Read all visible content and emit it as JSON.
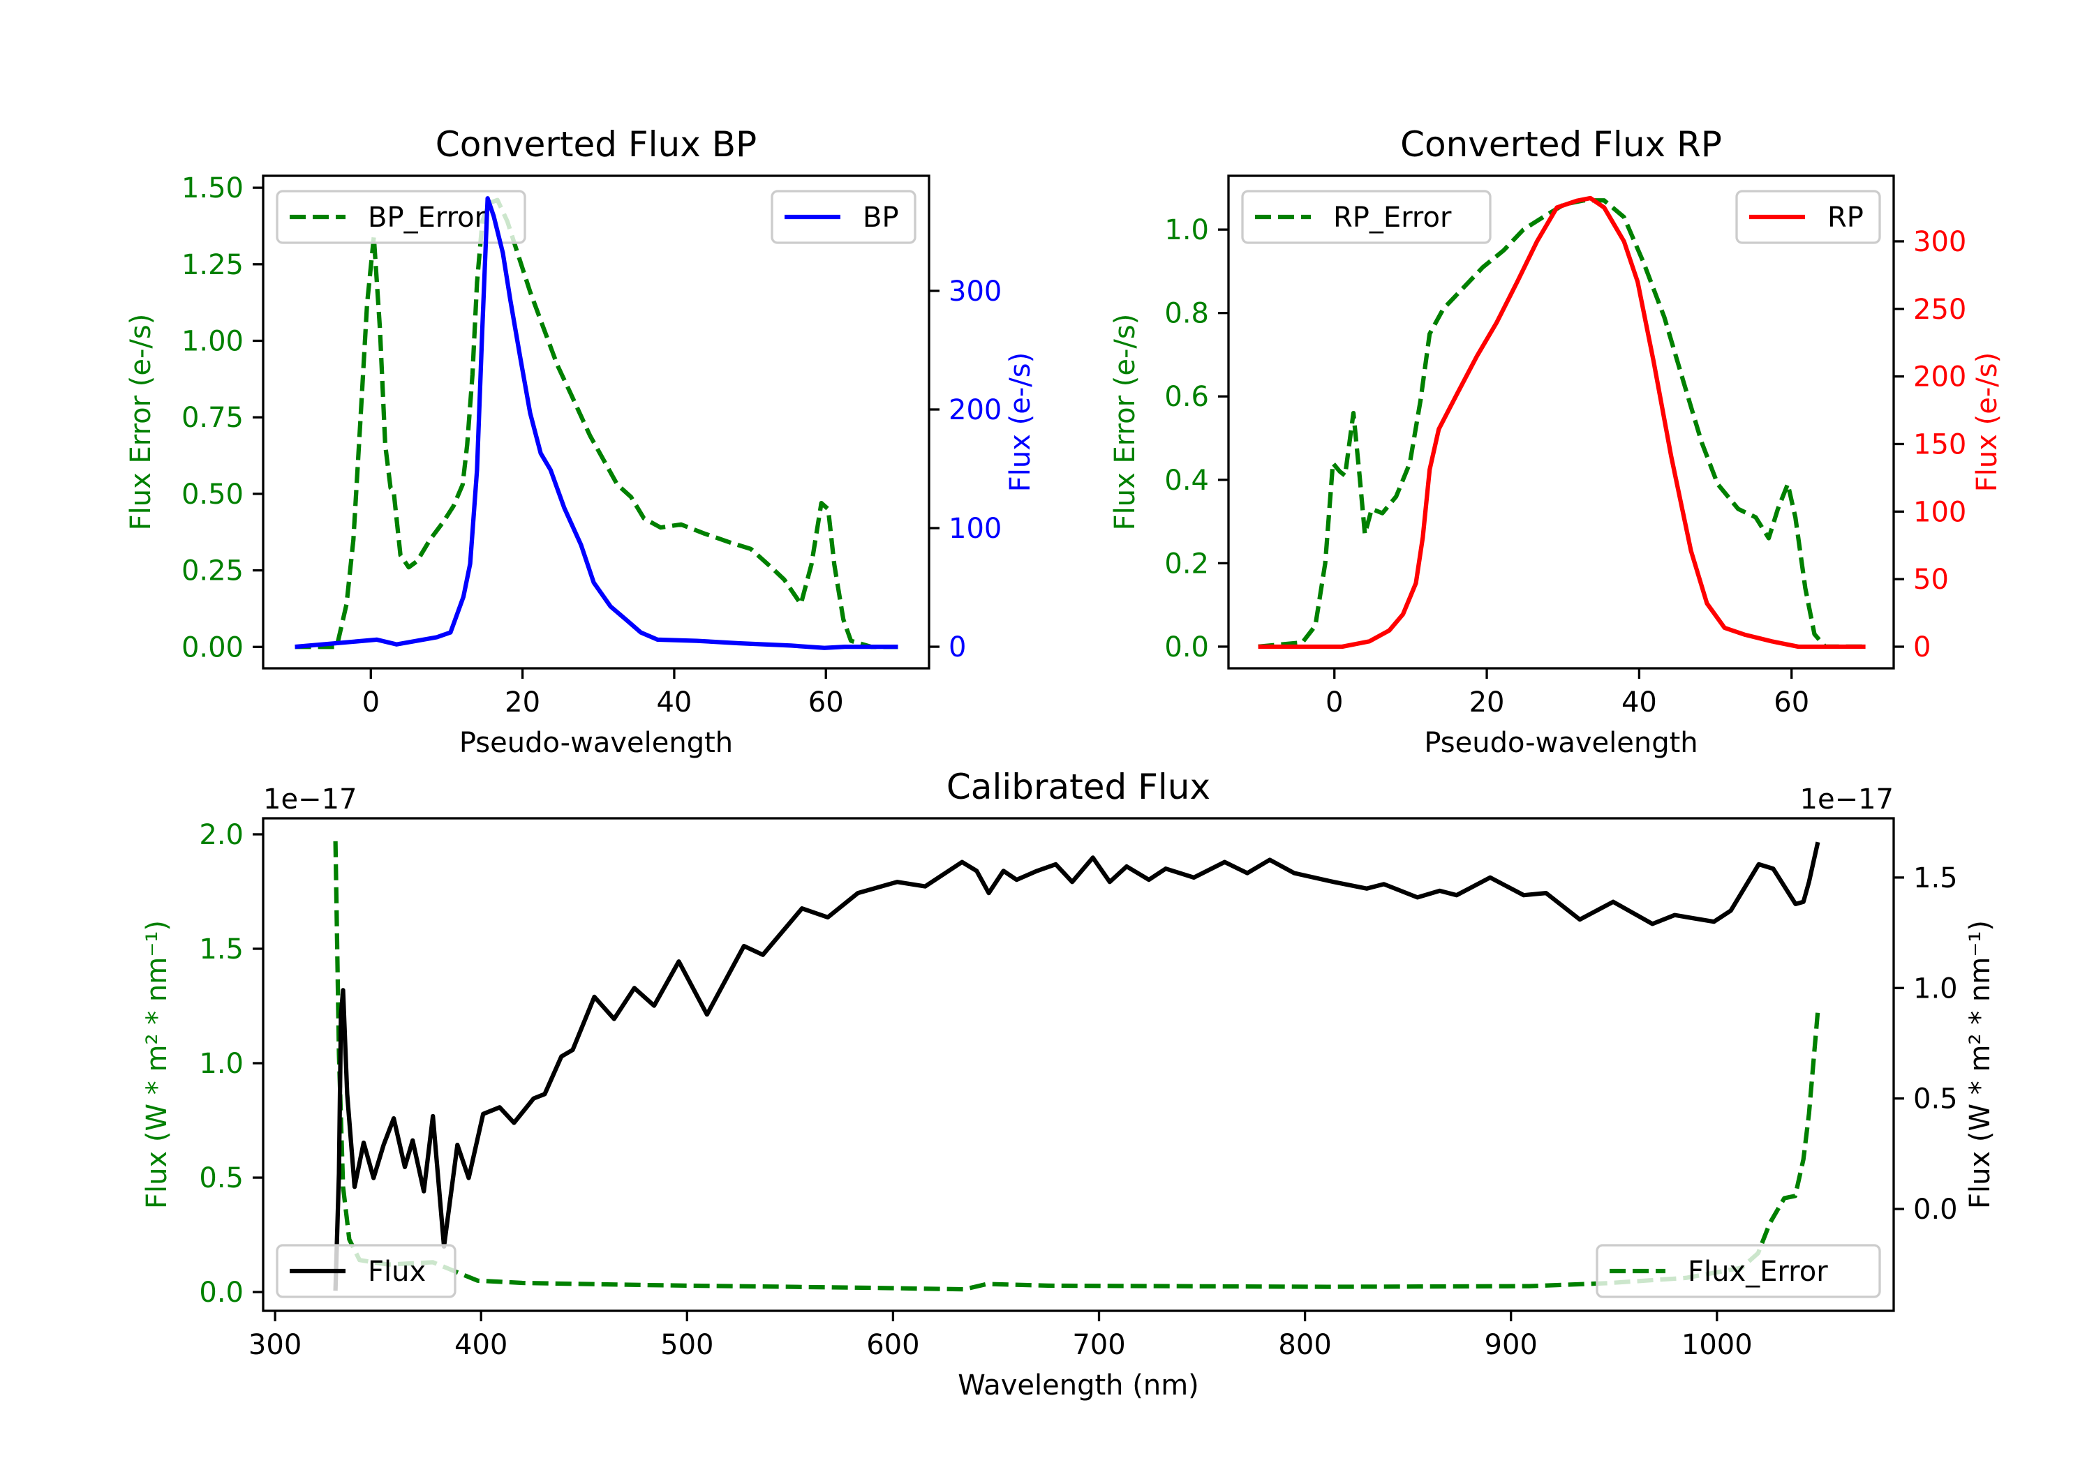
{
  "chart_data": [
    {
      "type": "line",
      "title": "Converted Flux BP",
      "xlabel": "Pseudo-wavelength",
      "ylabel_left": "Flux Error (e-/s)",
      "ylabel_right": "Flux (e-/s)",
      "xlim": [
        -14.2,
        73.6
      ],
      "ylim_left": [
        -0.07,
        1.539
      ],
      "ylim_right": [
        -18.2,
        397
      ],
      "xticks": [
        0,
        20,
        40,
        60
      ],
      "yticks_left": [
        "0.00",
        "0.25",
        "0.50",
        "0.75",
        "1.00",
        "1.25",
        "1.50"
      ],
      "yticks_right": [
        "0",
        "100",
        "200",
        "300"
      ],
      "left_color": "#008000",
      "right_color": "#0000ff",
      "legend_left": {
        "label": "BP_Error",
        "placement": "upper left"
      },
      "legend_right": {
        "label": "BP",
        "placement": "upper right"
      },
      "series_left": {
        "name": "BP_Error",
        "style": "dashed",
        "color": "#008000",
        "points": [
          [
            -10,
            0
          ],
          [
            -4.5,
            0
          ],
          [
            -3.2,
            0.14
          ],
          [
            -2.3,
            0.35
          ],
          [
            -1.4,
            0.73
          ],
          [
            -0.5,
            1.12
          ],
          [
            0.4,
            1.34
          ],
          [
            1.2,
            1.04
          ],
          [
            1.9,
            0.66
          ],
          [
            2.6,
            0.52
          ],
          [
            3,
            0.51
          ],
          [
            3.9,
            0.3
          ],
          [
            5,
            0.26
          ],
          [
            6.1,
            0.28
          ],
          [
            7.8,
            0.35
          ],
          [
            9.6,
            0.41
          ],
          [
            10.9,
            0.46
          ],
          [
            12.1,
            0.53
          ],
          [
            12.7,
            0.66
          ],
          [
            13.4,
            0.89
          ],
          [
            14,
            1.19
          ],
          [
            14.7,
            1.39
          ],
          [
            15.6,
            1.45
          ],
          [
            16.7,
            1.46
          ],
          [
            18,
            1.39
          ],
          [
            19.3,
            1.29
          ],
          [
            21,
            1.16
          ],
          [
            22.8,
            1.04
          ],
          [
            24.6,
            0.92
          ],
          [
            26.3,
            0.83
          ],
          [
            28.9,
            0.69
          ],
          [
            30.7,
            0.61
          ],
          [
            32.5,
            0.53
          ],
          [
            34.3,
            0.49
          ],
          [
            36,
            0.42
          ],
          [
            38.2,
            0.39
          ],
          [
            40.9,
            0.4
          ],
          [
            44,
            0.37
          ],
          [
            47.5,
            0.34
          ],
          [
            50.1,
            0.32
          ],
          [
            52.8,
            0.26
          ],
          [
            54.5,
            0.22
          ],
          [
            56.7,
            0.14
          ],
          [
            58.1,
            0.27
          ],
          [
            59.4,
            0.47
          ],
          [
            60.3,
            0.45
          ],
          [
            61.1,
            0.27
          ],
          [
            62.3,
            0.09
          ],
          [
            63.3,
            0.02
          ],
          [
            66,
            0
          ],
          [
            69.5,
            0
          ]
        ]
      },
      "series_right": {
        "name": "BP",
        "style": "solid",
        "color": "#0000ff",
        "points": [
          [
            -10,
            0
          ],
          [
            0.8,
            6
          ],
          [
            3.4,
            2
          ],
          [
            8.7,
            8
          ],
          [
            10.5,
            12
          ],
          [
            12.2,
            42
          ],
          [
            13.1,
            70
          ],
          [
            14,
            149
          ],
          [
            14.7,
            268
          ],
          [
            15.4,
            378
          ],
          [
            16.2,
            363
          ],
          [
            17.4,
            332
          ],
          [
            18.4,
            292
          ],
          [
            19.7,
            244
          ],
          [
            21,
            197
          ],
          [
            22.4,
            163
          ],
          [
            23.7,
            149
          ],
          [
            25.5,
            117
          ],
          [
            27.7,
            86
          ],
          [
            29.4,
            54
          ],
          [
            31.6,
            34
          ],
          [
            33.8,
            22
          ],
          [
            35.6,
            12
          ],
          [
            37.8,
            6
          ],
          [
            43,
            5
          ],
          [
            48.4,
            3
          ],
          [
            55.4,
            1
          ],
          [
            59.8,
            -1
          ],
          [
            62.5,
            0
          ],
          [
            69.5,
            0
          ]
        ]
      }
    },
    {
      "type": "line",
      "title": "Converted Flux RP",
      "xlabel": "Pseudo-wavelength",
      "ylabel_left": "Flux Error (e-/s)",
      "ylabel_right": "Flux (e-/s)",
      "xlim": [
        -13.9,
        73.4
      ],
      "ylim_left": [
        -0.052,
        1.129
      ],
      "ylim_right": [
        -16,
        348.5
      ],
      "xticks": [
        0,
        20,
        40,
        60
      ],
      "yticks_left": [
        "0.0",
        "0.2",
        "0.4",
        "0.6",
        "0.8",
        "1.0"
      ],
      "yticks_right": [
        "0",
        "50",
        "100",
        "150",
        "200",
        "250",
        "300"
      ],
      "left_color": "#008000",
      "right_color": "#ff0000",
      "legend_left": {
        "label": "RP_Error",
        "placement": "upper left"
      },
      "legend_right": {
        "label": "RP",
        "placement": "upper right"
      },
      "series_left": {
        "name": "RP_Error",
        "style": "dashed",
        "color": "#008000",
        "points": [
          [
            -10,
            0
          ],
          [
            -4.2,
            0.01
          ],
          [
            -2.5,
            0.05
          ],
          [
            -1.2,
            0.2
          ],
          [
            -0.2,
            0.44
          ],
          [
            0.7,
            0.42
          ],
          [
            1.4,
            0.41
          ],
          [
            2.5,
            0.56
          ],
          [
            3.3,
            0.41
          ],
          [
            4,
            0.27
          ],
          [
            4.9,
            0.33
          ],
          [
            6.3,
            0.32
          ],
          [
            8.1,
            0.36
          ],
          [
            9.9,
            0.44
          ],
          [
            11.3,
            0.59
          ],
          [
            12.5,
            0.75
          ],
          [
            14.3,
            0.81
          ],
          [
            16.9,
            0.86
          ],
          [
            19.5,
            0.91
          ],
          [
            22.2,
            0.95
          ],
          [
            24.8,
            1.0
          ],
          [
            27.4,
            1.03
          ],
          [
            30.1,
            1.06
          ],
          [
            32.7,
            1.07
          ],
          [
            35.4,
            1.07
          ],
          [
            38,
            1.03
          ],
          [
            40.6,
            0.92
          ],
          [
            43.3,
            0.79
          ],
          [
            45.9,
            0.63
          ],
          [
            48.2,
            0.49
          ],
          [
            50.3,
            0.39
          ],
          [
            53,
            0.33
          ],
          [
            55.3,
            0.31
          ],
          [
            57,
            0.26
          ],
          [
            58.2,
            0.33
          ],
          [
            59.5,
            0.39
          ],
          [
            60.5,
            0.31
          ],
          [
            61.8,
            0.14
          ],
          [
            63,
            0.03
          ],
          [
            64.4,
            0
          ],
          [
            69.7,
            0
          ]
        ]
      },
      "series_right": {
        "name": "RP",
        "style": "solid",
        "color": "#ff0000",
        "points": [
          [
            -10,
            0
          ],
          [
            1,
            0
          ],
          [
            4.6,
            4
          ],
          [
            7.2,
            12
          ],
          [
            9,
            24
          ],
          [
            10.7,
            47
          ],
          [
            11.6,
            81
          ],
          [
            12.5,
            131
          ],
          [
            13.7,
            161
          ],
          [
            16,
            186
          ],
          [
            18.7,
            215
          ],
          [
            21.3,
            240
          ],
          [
            24,
            270
          ],
          [
            26.6,
            300
          ],
          [
            29.2,
            325
          ],
          [
            31.8,
            330
          ],
          [
            33.6,
            332
          ],
          [
            35.4,
            325
          ],
          [
            38,
            300
          ],
          [
            39.8,
            270
          ],
          [
            41.9,
            211
          ],
          [
            44.2,
            141
          ],
          [
            46.8,
            71
          ],
          [
            48.9,
            32
          ],
          [
            51.2,
            14
          ],
          [
            53.8,
            9
          ],
          [
            57.4,
            4
          ],
          [
            60.9,
            0
          ],
          [
            69.7,
            0
          ]
        ]
      }
    },
    {
      "type": "line",
      "title": "Calibrated Flux",
      "xlabel": "Wavelength (nm)",
      "ylabel_left": "Flux (W * m² * nm⁻¹)",
      "ylabel_right": "Flux (W * m² * nm⁻¹)",
      "offset_left": "1e−17",
      "offset_right": "1e−17",
      "xlim": [
        294.2,
        1085.8
      ],
      "ylim_left": [
        -0.082,
        2.07
      ],
      "ylim_right": [
        -0.461,
        1.768
      ],
      "xticks": [
        300,
        400,
        500,
        600,
        700,
        800,
        900,
        1000
      ],
      "yticks_left": [
        "0.0",
        "0.5",
        "1.0",
        "1.5",
        "2.0"
      ],
      "yticks_right": [
        "0.0",
        "0.5",
        "1.0",
        "1.5"
      ],
      "left_color": "#008000",
      "right_color": "#000000",
      "legend_left": {
        "label": "Flux",
        "placement": "lower left"
      },
      "legend_right": {
        "label": "Flux_Error",
        "placement": "lower right"
      },
      "legend_left_series": "right",
      "series_left": {
        "name": "Flux_Error",
        "style": "dashed",
        "color": "#008000",
        "points": [
          [
            329.3,
            1.97
          ],
          [
            331,
            1.04
          ],
          [
            333,
            0.46
          ],
          [
            336,
            0.23
          ],
          [
            341,
            0.14
          ],
          [
            354.9,
            0.12
          ],
          [
            376.6,
            0.13
          ],
          [
            384.7,
            0.1
          ],
          [
            398.3,
            0.05
          ],
          [
            420,
            0.04
          ],
          [
            485,
            0.03
          ],
          [
            593.9,
            0.018
          ],
          [
            634.6,
            0.012
          ],
          [
            645.5,
            0.035
          ],
          [
            675.3,
            0.028
          ],
          [
            811,
            0.023
          ],
          [
            908.9,
            0.026
          ],
          [
            947,
            0.039
          ],
          [
            985,
            0.062
          ],
          [
            1012,
            0.106
          ],
          [
            1020,
            0.17
          ],
          [
            1025.6,
            0.3
          ],
          [
            1032.7,
            0.41
          ],
          [
            1038,
            0.42
          ],
          [
            1042,
            0.58
          ],
          [
            1044.7,
            0.78
          ],
          [
            1049,
            1.23
          ]
        ]
      },
      "series_right": {
        "name": "Flux",
        "style": "solid",
        "color": "#000000",
        "points": [
          [
            329.3,
            -0.37
          ],
          [
            331,
            0.16
          ],
          [
            332,
            0.88
          ],
          [
            333,
            0.99
          ],
          [
            335,
            0.52
          ],
          [
            338.6,
            0.1
          ],
          [
            343,
            0.3
          ],
          [
            347.8,
            0.14
          ],
          [
            352.7,
            0.29
          ],
          [
            357.6,
            0.41
          ],
          [
            363,
            0.19
          ],
          [
            366.8,
            0.31
          ],
          [
            372.2,
            0.08
          ],
          [
            376.6,
            0.42
          ],
          [
            382,
            -0.17
          ],
          [
            388.5,
            0.29
          ],
          [
            394,
            0.14
          ],
          [
            401,
            0.43
          ],
          [
            409,
            0.46
          ],
          [
            416,
            0.39
          ],
          [
            425.5,
            0.5
          ],
          [
            430.9,
            0.52
          ],
          [
            439,
            0.69
          ],
          [
            444.5,
            0.72
          ],
          [
            455,
            0.96
          ],
          [
            464.6,
            0.86
          ],
          [
            474.4,
            1.0
          ],
          [
            484,
            0.92
          ],
          [
            496,
            1.12
          ],
          [
            509.7,
            0.88
          ],
          [
            527.6,
            1.19
          ],
          [
            536.8,
            1.15
          ],
          [
            555.8,
            1.36
          ],
          [
            568.3,
            1.32
          ],
          [
            583,
            1.43
          ],
          [
            602,
            1.48
          ],
          [
            615.6,
            1.46
          ],
          [
            633.5,
            1.57
          ],
          [
            640.6,
            1.53
          ],
          [
            646.5,
            1.43
          ],
          [
            653.6,
            1.53
          ],
          [
            660,
            1.49
          ],
          [
            669.9,
            1.53
          ],
          [
            679,
            1.56
          ],
          [
            687,
            1.48
          ],
          [
            697,
            1.59
          ],
          [
            705.2,
            1.48
          ],
          [
            713.4,
            1.55
          ],
          [
            724.2,
            1.49
          ],
          [
            732.4,
            1.54
          ],
          [
            746,
            1.5
          ],
          [
            761,
            1.57
          ],
          [
            772,
            1.52
          ],
          [
            782.9,
            1.58
          ],
          [
            794.8,
            1.52
          ],
          [
            813.9,
            1.48
          ],
          [
            830,
            1.45
          ],
          [
            838.3,
            1.47
          ],
          [
            854.6,
            1.41
          ],
          [
            865.4,
            1.44
          ],
          [
            873.6,
            1.42
          ],
          [
            889.9,
            1.5
          ],
          [
            906.2,
            1.42
          ],
          [
            917,
            1.43
          ],
          [
            933.4,
            1.31
          ],
          [
            949.6,
            1.39
          ],
          [
            968.7,
            1.29
          ],
          [
            979.5,
            1.33
          ],
          [
            998.5,
            1.3
          ],
          [
            1006.7,
            1.35
          ],
          [
            1020.3,
            1.56
          ],
          [
            1027.3,
            1.54
          ],
          [
            1038.2,
            1.38
          ],
          [
            1042,
            1.39
          ],
          [
            1044.7,
            1.48
          ],
          [
            1049,
            1.66
          ]
        ]
      }
    }
  ]
}
